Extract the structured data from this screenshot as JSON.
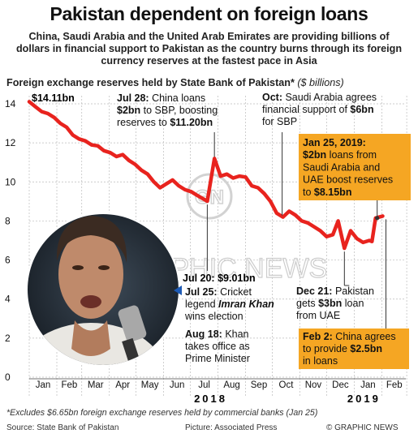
{
  "page": {
    "title": "Pakistan dependent on foreign loans",
    "subtitle": "China, Saudi Arabia and the United Arab Emirates are providing billions of dollars in financial support to Pakistan as the country burns through its foreign currency reserves at the fastest pace in Asia",
    "heading": "Foreign exchange reserves held by State Bank of Pakistan*",
    "heading_unit": "($ billions)",
    "footnote": "*Excludes $6.65bn foreign exchange reserves held by commercial banks (Jan 25)",
    "source": "Source: State Bank of Pakistan",
    "picture": "Picture: Associated Press",
    "credit": "© GRAPHIC NEWS",
    "watermark": "GRAPHIC NEWS"
  },
  "colors": {
    "line": "#e8231e",
    "highlight": "#f5a623",
    "grid": "#bbbbbb",
    "marker": "#1e5bb5"
  },
  "chart_data": {
    "type": "line",
    "ylim": [
      0,
      14
    ],
    "yticks": [
      "0",
      "2",
      "4",
      "6",
      "8",
      "10",
      "12",
      "14"
    ],
    "months": [
      "Jan",
      "Feb",
      "Mar",
      "Apr",
      "May",
      "Jun",
      "Jul",
      "Aug",
      "Sep",
      "Oct",
      "Nov",
      "Dec",
      "Jan",
      "Feb"
    ],
    "years": [
      "2018",
      "2019"
    ],
    "series": [
      {
        "values": [
          [
            "2018-01-01",
            14.11
          ],
          [
            "2018-01-08",
            13.85
          ],
          [
            "2018-01-15",
            13.6
          ],
          [
            "2018-01-22",
            13.5
          ],
          [
            "2018-01-29",
            13.3
          ],
          [
            "2018-02-05",
            13.0
          ],
          [
            "2018-02-12",
            12.8
          ],
          [
            "2018-02-19",
            12.4
          ],
          [
            "2018-02-26",
            12.2
          ],
          [
            "2018-03-05",
            12.1
          ],
          [
            "2018-03-12",
            11.9
          ],
          [
            "2018-03-19",
            11.85
          ],
          [
            "2018-03-26",
            11.6
          ],
          [
            "2018-04-02",
            11.5
          ],
          [
            "2018-04-09",
            11.3
          ],
          [
            "2018-04-16",
            11.4
          ],
          [
            "2018-04-23",
            11.1
          ],
          [
            "2018-04-30",
            10.9
          ],
          [
            "2018-05-07",
            10.6
          ],
          [
            "2018-05-14",
            10.4
          ],
          [
            "2018-05-21",
            10.0
          ],
          [
            "2018-05-28",
            9.7
          ],
          [
            "2018-06-04",
            9.9
          ],
          [
            "2018-06-11",
            10.1
          ],
          [
            "2018-06-18",
            9.8
          ],
          [
            "2018-06-25",
            9.6
          ],
          [
            "2018-07-02",
            9.5
          ],
          [
            "2018-07-09",
            9.3
          ],
          [
            "2018-07-20",
            9.01
          ],
          [
            "2018-07-28",
            11.2
          ],
          [
            "2018-08-04",
            10.3
          ],
          [
            "2018-08-11",
            10.4
          ],
          [
            "2018-08-18",
            10.2
          ],
          [
            "2018-08-25",
            10.3
          ],
          [
            "2018-09-01",
            10.25
          ],
          [
            "2018-09-08",
            9.8
          ],
          [
            "2018-09-15",
            9.7
          ],
          [
            "2018-09-22",
            9.4
          ],
          [
            "2018-09-29",
            9.0
          ],
          [
            "2018-10-06",
            8.4
          ],
          [
            "2018-10-13",
            8.2
          ],
          [
            "2018-10-20",
            8.5
          ],
          [
            "2018-10-27",
            8.3
          ],
          [
            "2018-11-03",
            8.0
          ],
          [
            "2018-11-10",
            7.9
          ],
          [
            "2018-11-17",
            7.7
          ],
          [
            "2018-11-24",
            7.5
          ],
          [
            "2018-12-01",
            7.2
          ],
          [
            "2018-12-08",
            7.3
          ],
          [
            "2018-12-14",
            8.0
          ],
          [
            "2018-12-21",
            6.6
          ],
          [
            "2018-12-28",
            7.5
          ],
          [
            "2019-01-04",
            7.1
          ],
          [
            "2019-01-11",
            6.9
          ],
          [
            "2019-01-18",
            7.0
          ],
          [
            "2019-01-21",
            6.95
          ],
          [
            "2019-01-25",
            8.15
          ],
          [
            "2019-02-02",
            8.25
          ]
        ]
      }
    ]
  },
  "annotations": {
    "start": {
      "text": "$14.11bn"
    },
    "jul28": {
      "lines": [
        [
          "Jul 28:",
          " China loans"
        ],
        [
          "$2bn",
          " to SBP, boosting"
        ],
        [
          "reserves to ",
          "$11.20bn"
        ]
      ]
    },
    "oct": {
      "lines": [
        [
          "Oct:",
          " Saudi Arabia agrees"
        ],
        [
          "financial support of ",
          "$6bn"
        ],
        [
          "for SBP",
          ""
        ]
      ]
    },
    "jan25": {
      "lines": [
        [
          "Jan 25, 2019:",
          ""
        ],
        [
          "$2bn",
          " loans from"
        ],
        [
          "Saudi Arabia and",
          ""
        ],
        [
          "UAE boost reserves",
          ""
        ],
        [
          "to ",
          "$8.15bn"
        ]
      ]
    },
    "jul20": {
      "text": "Jul 20: $9.01bn"
    },
    "jul25": {
      "lines": [
        [
          "Jul 25:",
          " Cricket"
        ],
        [
          "legend ",
          "Imran Khan"
        ],
        [
          "wins election",
          ""
        ]
      ]
    },
    "aug18": {
      "lines": [
        [
          "Aug 18:",
          " Khan"
        ],
        [
          "takes office as",
          ""
        ],
        [
          "Prime Minister",
          ""
        ]
      ]
    },
    "dec21": {
      "lines": [
        [
          "Dec 21:",
          " Pakistan"
        ],
        [
          "gets ",
          "$3bn",
          " loan"
        ],
        [
          "from UAE",
          ""
        ]
      ]
    },
    "feb2": {
      "lines": [
        [
          "Feb 2:",
          " China agrees"
        ],
        [
          "to provide ",
          "$2.5bn"
        ],
        [
          "in loans",
          ""
        ]
      ]
    }
  }
}
